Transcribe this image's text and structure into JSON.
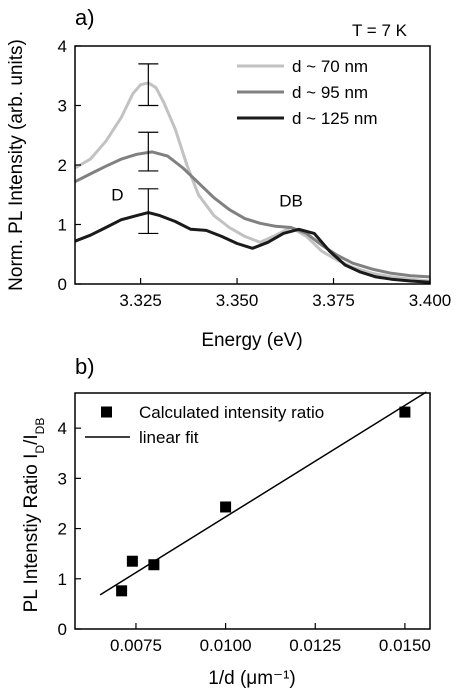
{
  "chart_data": [
    {
      "type": "line",
      "panel_label": "a)",
      "annotation": "T = 7 K",
      "xlabel": "Energy (eV)",
      "ylabel": "Norm. PL Intensity (arb. units)",
      "xlim": [
        3.308,
        3.4
      ],
      "ylim": [
        0,
        4
      ],
      "xticks": [
        "3.325",
        "3.350",
        "3.375",
        "3.400"
      ],
      "xtick_values": [
        3.325,
        3.35,
        3.375,
        3.4
      ],
      "yticks": [
        "0",
        "1",
        "2",
        "3",
        "4"
      ],
      "ytick_values": [
        0,
        1,
        2,
        3,
        4
      ],
      "peak_labels": [
        {
          "text": "D",
          "x": 3.319,
          "y": 1.4
        },
        {
          "text": "DB",
          "x": 3.364,
          "y": 1.3
        }
      ],
      "error_bars": [
        {
          "x": 3.327,
          "y": 3.36,
          "low": 3.0,
          "high": 3.7
        },
        {
          "x": 3.327,
          "y": 2.22,
          "low": 1.9,
          "high": 2.55
        },
        {
          "x": 3.327,
          "y": 1.22,
          "low": 0.85,
          "high": 1.6
        }
      ],
      "legend_position": "top-right",
      "series": [
        {
          "name": "d ~ 70 nm",
          "color": "#c2c2c2",
          "x": [
            3.308,
            3.312,
            3.316,
            3.32,
            3.323,
            3.325,
            3.327,
            3.329,
            3.331,
            3.334,
            3.337,
            3.34,
            3.344,
            3.348,
            3.352,
            3.356,
            3.36,
            3.364,
            3.368,
            3.372,
            3.376,
            3.38,
            3.385,
            3.39,
            3.395,
            3.4
          ],
          "y": [
            1.95,
            2.1,
            2.4,
            2.8,
            3.2,
            3.35,
            3.38,
            3.3,
            3.05,
            2.6,
            2.0,
            1.5,
            1.15,
            0.95,
            0.8,
            0.7,
            0.82,
            0.95,
            0.8,
            0.55,
            0.4,
            0.28,
            0.18,
            0.12,
            0.08,
            0.05
          ]
        },
        {
          "name": "d ~ 95 nm",
          "color": "#808080",
          "x": [
            3.308,
            3.312,
            3.316,
            3.32,
            3.324,
            3.328,
            3.332,
            3.336,
            3.34,
            3.344,
            3.348,
            3.352,
            3.356,
            3.36,
            3.364,
            3.368,
            3.372,
            3.376,
            3.38,
            3.385,
            3.39,
            3.395,
            3.4
          ],
          "y": [
            1.72,
            1.85,
            1.98,
            2.1,
            2.18,
            2.22,
            2.15,
            1.95,
            1.7,
            1.45,
            1.25,
            1.1,
            1.02,
            0.97,
            0.95,
            0.85,
            0.65,
            0.48,
            0.35,
            0.25,
            0.18,
            0.14,
            0.12
          ]
        },
        {
          "name": "d ~ 125 nm",
          "color": "#1a1a1a",
          "x": [
            3.308,
            3.312,
            3.316,
            3.32,
            3.324,
            3.327,
            3.33,
            3.334,
            3.338,
            3.342,
            3.346,
            3.35,
            3.354,
            3.358,
            3.362,
            3.366,
            3.37,
            3.374,
            3.378,
            3.382,
            3.386,
            3.39,
            3.395,
            3.4
          ],
          "y": [
            0.72,
            0.82,
            0.95,
            1.08,
            1.15,
            1.2,
            1.15,
            1.05,
            0.92,
            0.9,
            0.8,
            0.68,
            0.6,
            0.7,
            0.85,
            0.92,
            0.85,
            0.55,
            0.32,
            0.2,
            0.12,
            0.08,
            0.05,
            0.03
          ]
        }
      ]
    },
    {
      "type": "scatter",
      "panel_label": "b)",
      "xlabel": "1/d (μm⁻¹)",
      "ylabel": "PL Intenstiy Ratio I_D/I_DB",
      "xlim": [
        0.0058,
        0.0157
      ],
      "ylim": [
        0,
        4.7
      ],
      "xticks": [
        "0.0075",
        "0.0100",
        "0.0125",
        "0.0150"
      ],
      "xtick_values": [
        0.0075,
        0.01,
        0.0125,
        0.015
      ],
      "yticks": [
        "0",
        "1",
        "2",
        "3",
        "4"
      ],
      "ytick_values": [
        0,
        1,
        2,
        3,
        4
      ],
      "legend_position": "top-left",
      "series": [
        {
          "name": "Calculated intensity ratio",
          "marker": "square",
          "color": "#000000",
          "x": [
            0.0071,
            0.0074,
            0.008,
            0.01,
            0.015
          ],
          "y": [
            0.76,
            1.35,
            1.28,
            2.43,
            4.32
          ]
        },
        {
          "name": "linear fit",
          "type": "line",
          "color": "#000000",
          "x": [
            0.0065,
            0.0156
          ],
          "y": [
            0.68,
            4.72
          ]
        }
      ]
    }
  ]
}
